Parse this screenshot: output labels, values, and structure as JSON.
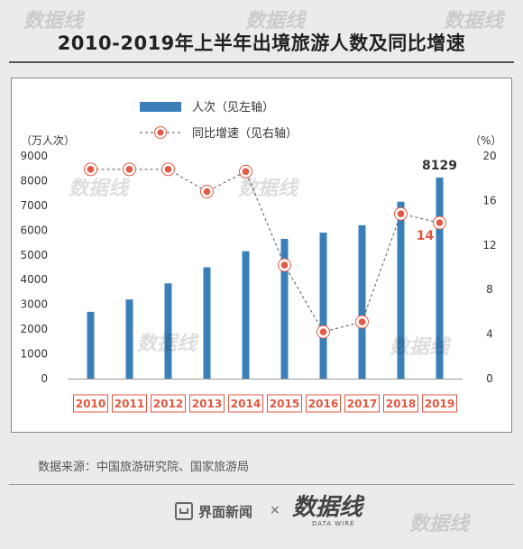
{
  "title": "2010-2019年上半年出境旅游人数及同比增速",
  "source": "数据来源：中国旅游研究院、国家旅游局",
  "footer": {
    "brand1": "界面新闻",
    "times": "×",
    "brand2": "数据线",
    "brand2_sub": "DATA WIRE"
  },
  "colors": {
    "bar": "#3a7fb8",
    "line": "#555555",
    "marker_fill": "#e25a45",
    "highlight_text": "#e2553f",
    "year_box": "#e2553f"
  },
  "chart_data": {
    "type": "bar+line",
    "categories": [
      "2010",
      "2011",
      "2012",
      "2013",
      "2014",
      "2015",
      "2016",
      "2017",
      "2018",
      "2019"
    ],
    "left_axis_unit": "（万人次）",
    "right_axis_unit": "（%）",
    "left_ylim": [
      0,
      9000
    ],
    "left_ticks": [
      0,
      1000,
      2000,
      3000,
      4000,
      5000,
      6000,
      7000,
      8000,
      9000
    ],
    "right_ylim": [
      0,
      20
    ],
    "right_ticks": [
      0,
      4,
      8,
      12,
      16,
      20
    ],
    "series": [
      {
        "name": "人次（见左轴）",
        "type": "bar",
        "axis": "left",
        "values": [
          2700,
          3200,
          3850,
          4500,
          5150,
          5650,
          5900,
          6200,
          7150,
          8129
        ]
      },
      {
        "name": "同比增速（见右轴）",
        "type": "line",
        "axis": "right",
        "values": [
          18.8,
          18.8,
          18.8,
          16.8,
          18.6,
          10.2,
          4.2,
          5.1,
          14.8,
          14
        ]
      }
    ],
    "data_labels": [
      {
        "series": 0,
        "index": 9,
        "text": "8129"
      },
      {
        "series": 1,
        "index": 9,
        "text": "14"
      }
    ],
    "legend_position": "top-center",
    "grid": false
  }
}
